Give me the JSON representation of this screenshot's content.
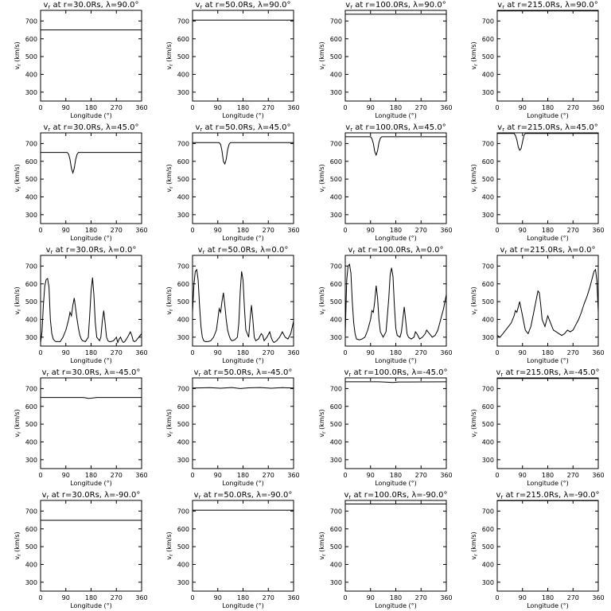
{
  "chart_data": [
    {
      "type": "line",
      "title": "v_r at r=30.0Rs, λ=90.0°",
      "r": "30.0",
      "lat": "90.0",
      "xlabel": "Longitude (°)",
      "ylabel": "v_r (km/s)",
      "xlim": [
        0,
        360
      ],
      "ylim": [
        250,
        760
      ],
      "xticks": [
        0,
        90,
        180,
        270,
        360
      ],
      "yticks": [
        300,
        400,
        500,
        600,
        700
      ],
      "x": [
        0,
        360
      ],
      "y": [
        650,
        650
      ]
    },
    {
      "type": "line",
      "title": "v_r at r=50.0Rs, λ=90.0°",
      "r": "50.0",
      "lat": "90.0",
      "xlabel": "Longitude (°)",
      "ylabel": "v_r (km/s)",
      "xlim": [
        0,
        360
      ],
      "ylim": [
        250,
        760
      ],
      "xticks": [
        0,
        90,
        180,
        270,
        360
      ],
      "yticks": [
        300,
        400,
        500,
        600,
        700
      ],
      "x": [
        0,
        360
      ],
      "y": [
        705,
        705
      ]
    },
    {
      "type": "line",
      "title": "v_r at r=100.0Rs, λ=90.0°",
      "r": "100.0",
      "lat": "90.0",
      "xlabel": "Longitude (°)",
      "ylabel": "v_r (km/s)",
      "xlim": [
        0,
        360
      ],
      "ylim": [
        250,
        760
      ],
      "xticks": [
        0,
        90,
        180,
        270,
        360
      ],
      "yticks": [
        300,
        400,
        500,
        600,
        700
      ],
      "x": [
        0,
        360
      ],
      "y": [
        738,
        738
      ]
    },
    {
      "type": "line",
      "title": "v_r at r=215.0Rs, λ=90.0°",
      "r": "215.0",
      "lat": "90.0",
      "xlabel": "Longitude (°)",
      "ylabel": "v_r (km/s)",
      "xlim": [
        0,
        360
      ],
      "ylim": [
        250,
        760
      ],
      "xticks": [
        0,
        90,
        180,
        270,
        360
      ],
      "yticks": [
        300,
        400,
        500,
        600,
        700
      ],
      "x": [
        0,
        360
      ],
      "y": [
        757,
        757
      ]
    },
    {
      "type": "line",
      "title": "v_r at r=30.0Rs, λ=45.0°",
      "r": "30.0",
      "lat": "45.0",
      "xlabel": "Longitude (°)",
      "ylabel": "v_r (km/s)",
      "xlim": [
        0,
        360
      ],
      "ylim": [
        250,
        760
      ],
      "xticks": [
        0,
        90,
        180,
        270,
        360
      ],
      "yticks": [
        300,
        400,
        500,
        600,
        700
      ],
      "x": [
        0,
        95,
        100,
        105,
        110,
        115,
        120,
        125,
        130,
        135,
        140,
        360
      ],
      "y": [
        650,
        650,
        640,
        610,
        560,
        535,
        560,
        610,
        640,
        650,
        650,
        650
      ]
    },
    {
      "type": "line",
      "title": "v_r at r=50.0Rs, λ=45.0°",
      "r": "50.0",
      "lat": "45.0",
      "xlabel": "Longitude (°)",
      "ylabel": "v_r (km/s)",
      "xlim": [
        0,
        360
      ],
      "ylim": [
        250,
        760
      ],
      "xticks": [
        0,
        90,
        180,
        270,
        360
      ],
      "yticks": [
        300,
        400,
        500,
        600,
        700
      ],
      "x": [
        0,
        95,
        100,
        105,
        110,
        115,
        120,
        125,
        130,
        135,
        360
      ],
      "y": [
        705,
        705,
        695,
        660,
        600,
        585,
        610,
        665,
        695,
        705,
        705
      ]
    },
    {
      "type": "line",
      "title": "v_r at r=100.0Rs, λ=45.0°",
      "r": "100.0",
      "lat": "45.0",
      "xlabel": "Longitude (°)",
      "ylabel": "v_r (km/s)",
      "xlim": [
        0,
        360
      ],
      "ylim": [
        250,
        760
      ],
      "xticks": [
        0,
        90,
        180,
        270,
        360
      ],
      "yticks": [
        300,
        400,
        500,
        600,
        700
      ],
      "x": [
        0,
        90,
        95,
        100,
        105,
        110,
        115,
        120,
        125,
        130,
        360
      ],
      "y": [
        738,
        738,
        728,
        700,
        655,
        635,
        660,
        705,
        730,
        738,
        738
      ]
    },
    {
      "type": "line",
      "title": "v_r at r=215.0Rs, λ=45.0°",
      "r": "215.0",
      "lat": "45.0",
      "xlabel": "Longitude (°)",
      "ylabel": "v_r (km/s)",
      "xlim": [
        0,
        360
      ],
      "ylim": [
        250,
        760
      ],
      "xticks": [
        0,
        90,
        180,
        270,
        360
      ],
      "yticks": [
        300,
        400,
        500,
        600,
        700
      ],
      "x": [
        0,
        60,
        65,
        70,
        75,
        80,
        85,
        90,
        95,
        100,
        360
      ],
      "y": [
        757,
        757,
        745,
        720,
        680,
        662,
        672,
        710,
        745,
        757,
        757
      ]
    },
    {
      "type": "line",
      "title": "v_r at r=30.0Rs, λ=0.0°",
      "r": "30.0",
      "lat": "0.0",
      "xlabel": "Longitude (°)",
      "ylabel": "v_r (km/s)",
      "xlim": [
        0,
        360
      ],
      "ylim": [
        250,
        760
      ],
      "xticks": [
        0,
        90,
        180,
        270,
        360
      ],
      "yticks": [
        300,
        400,
        500,
        600,
        700
      ],
      "x": [
        0,
        5,
        10,
        15,
        20,
        25,
        30,
        35,
        40,
        45,
        50,
        55,
        60,
        70,
        80,
        90,
        100,
        105,
        110,
        115,
        120,
        125,
        130,
        135,
        140,
        145,
        150,
        160,
        170,
        175,
        180,
        185,
        190,
        195,
        200,
        210,
        215,
        220,
        225,
        230,
        235,
        240,
        245,
        250,
        260,
        270,
        275,
        280,
        285,
        290,
        295,
        300,
        310,
        320,
        325,
        330,
        335,
        340,
        350,
        360
      ],
      "y": [
        270,
        330,
        480,
        590,
        625,
        630,
        580,
        400,
        320,
        290,
        280,
        275,
        275,
        275,
        300,
        340,
        400,
        440,
        420,
        480,
        520,
        460,
        400,
        350,
        310,
        290,
        280,
        275,
        300,
        420,
        560,
        635,
        540,
        380,
        300,
        280,
        300,
        390,
        450,
        380,
        300,
        280,
        275,
        275,
        280,
        300,
        270,
        290,
        300,
        280,
        270,
        275,
        300,
        330,
        310,
        280,
        275,
        280,
        300,
        320
      ]
    },
    {
      "type": "line",
      "title": "v_r at r=50.0Rs, λ=0.0°",
      "r": "50.0",
      "lat": "0.0",
      "xlabel": "Longitude (°)",
      "ylabel": "v_r (km/s)",
      "xlim": [
        0,
        360
      ],
      "ylim": [
        250,
        760
      ],
      "xticks": [
        0,
        90,
        180,
        270,
        360
      ],
      "yticks": [
        300,
        400,
        500,
        600,
        700
      ],
      "x": [
        0,
        5,
        10,
        15,
        20,
        25,
        30,
        35,
        40,
        45,
        55,
        65,
        75,
        85,
        90,
        95,
        100,
        105,
        110,
        115,
        120,
        125,
        130,
        135,
        140,
        150,
        160,
        165,
        170,
        175,
        180,
        185,
        190,
        200,
        205,
        210,
        215,
        220,
        225,
        235,
        245,
        250,
        255,
        265,
        275,
        280,
        285,
        290,
        300,
        310,
        320,
        330,
        340,
        350,
        360
      ],
      "y": [
        440,
        600,
        670,
        680,
        620,
        480,
        360,
        300,
        280,
        275,
        275,
        280,
        300,
        340,
        400,
        460,
        440,
        500,
        550,
        480,
        400,
        340,
        310,
        290,
        280,
        285,
        300,
        380,
        560,
        670,
        620,
        460,
        340,
        300,
        400,
        480,
        400,
        300,
        280,
        290,
        320,
        310,
        280,
        300,
        330,
        300,
        280,
        270,
        280,
        300,
        330,
        300,
        290,
        320,
        390
      ]
    },
    {
      "type": "line",
      "title": "v_r at r=100.0Rs, λ=0.0°",
      "r": "100.0",
      "lat": "0.0",
      "xlabel": "Longitude (°)",
      "ylabel": "v_r (km/s)",
      "xlim": [
        0,
        360
      ],
      "ylim": [
        250,
        760
      ],
      "xticks": [
        0,
        90,
        180,
        270,
        360
      ],
      "yticks": [
        300,
        400,
        500,
        600,
        700
      ],
      "x": [
        0,
        5,
        10,
        15,
        20,
        25,
        30,
        35,
        40,
        50,
        60,
        70,
        80,
        90,
        95,
        100,
        105,
        110,
        115,
        120,
        125,
        135,
        145,
        150,
        155,
        160,
        165,
        170,
        175,
        180,
        185,
        195,
        200,
        205,
        210,
        215,
        220,
        225,
        235,
        245,
        250,
        255,
        265,
        275,
        285,
        290,
        300,
        310,
        320,
        330,
        340,
        350,
        360
      ],
      "y": [
        320,
        620,
        700,
        710,
        660,
        500,
        380,
        320,
        290,
        285,
        290,
        300,
        340,
        400,
        450,
        440,
        500,
        590,
        520,
        400,
        330,
        300,
        330,
        420,
        520,
        650,
        690,
        640,
        480,
        350,
        310,
        300,
        330,
        400,
        470,
        400,
        320,
        300,
        290,
        300,
        330,
        320,
        290,
        300,
        320,
        340,
        320,
        300,
        310,
        340,
        400,
        460,
        540
      ]
    },
    {
      "type": "line",
      "title": "v_r at r=215.0Rs, λ=0.0°",
      "r": "215.0",
      "lat": "0.0",
      "xlabel": "Longitude (°)",
      "ylabel": "v_r (km/s)",
      "xlim": [
        0,
        360
      ],
      "ylim": [
        250,
        760
      ],
      "xticks": [
        0,
        90,
        180,
        270,
        360
      ],
      "yticks": [
        300,
        400,
        500,
        600,
        700
      ],
      "x": [
        0,
        10,
        20,
        30,
        40,
        50,
        60,
        65,
        70,
        75,
        80,
        85,
        90,
        95,
        100,
        110,
        120,
        130,
        140,
        145,
        150,
        155,
        160,
        170,
        175,
        180,
        190,
        200,
        210,
        220,
        230,
        240,
        250,
        260,
        270,
        280,
        290,
        300,
        310,
        320,
        330,
        340,
        345,
        350,
        355,
        360
      ],
      "y": [
        310,
        300,
        320,
        340,
        360,
        380,
        420,
        450,
        440,
        470,
        500,
        460,
        420,
        380,
        340,
        320,
        360,
        440,
        520,
        560,
        550,
        480,
        400,
        360,
        390,
        420,
        380,
        340,
        330,
        320,
        310,
        320,
        340,
        330,
        340,
        370,
        400,
        440,
        490,
        530,
        580,
        640,
        670,
        680,
        620,
        440
      ]
    },
    {
      "type": "line",
      "title": "v_r at r=30.0Rs, λ=-45.0°",
      "r": "30.0",
      "lat": "-45.0",
      "xlabel": "Longitude (°)",
      "ylabel": "v_r (km/s)",
      "xlim": [
        0,
        360
      ],
      "ylim": [
        250,
        760
      ],
      "xticks": [
        0,
        90,
        180,
        270,
        360
      ],
      "yticks": [
        300,
        400,
        500,
        600,
        700
      ],
      "x": [
        0,
        150,
        160,
        170,
        180,
        200,
        360
      ],
      "y": [
        650,
        650,
        648,
        645,
        646,
        650,
        650
      ]
    },
    {
      "type": "line",
      "title": "v_r at r=50.0Rs, λ=-45.0°",
      "r": "50.0",
      "lat": "-45.0",
      "xlabel": "Longitude (°)",
      "ylabel": "v_r (km/s)",
      "xlim": [
        0,
        360
      ],
      "ylim": [
        250,
        760
      ],
      "xticks": [
        0,
        90,
        180,
        270,
        360
      ],
      "yticks": [
        300,
        400,
        500,
        600,
        700
      ],
      "x": [
        0,
        60,
        100,
        140,
        170,
        200,
        240,
        280,
        320,
        360
      ],
      "y": [
        703,
        705,
        702,
        706,
        700,
        704,
        706,
        702,
        705,
        703
      ]
    },
    {
      "type": "line",
      "title": "v_r at r=100.0Rs, λ=-45.0°",
      "r": "100.0",
      "lat": "-45.0",
      "xlabel": "Longitude (°)",
      "ylabel": "v_r (km/s)",
      "xlim": [
        0,
        360
      ],
      "ylim": [
        250,
        760
      ],
      "xticks": [
        0,
        90,
        180,
        270,
        360
      ],
      "yticks": [
        300,
        400,
        500,
        600,
        700
      ],
      "x": [
        0,
        120,
        150,
        170,
        190,
        360
      ],
      "y": [
        738,
        738,
        736,
        734,
        737,
        738
      ]
    },
    {
      "type": "line",
      "title": "v_r at r=215.0Rs, λ=-45.0°",
      "r": "215.0",
      "lat": "-45.0",
      "xlabel": "Longitude (°)",
      "ylabel": "v_r (km/s)",
      "xlim": [
        0,
        360
      ],
      "ylim": [
        250,
        760
      ],
      "xticks": [
        0,
        90,
        180,
        270,
        360
      ],
      "yticks": [
        300,
        400,
        500,
        600,
        700
      ],
      "x": [
        0,
        360
      ],
      "y": [
        757,
        757
      ]
    },
    {
      "type": "line",
      "title": "v_r at r=30.0Rs, λ=-90.0°",
      "r": "30.0",
      "lat": "-90.0",
      "xlabel": "Longitude (°)",
      "ylabel": "v_r (km/s)",
      "xlim": [
        0,
        360
      ],
      "ylim": [
        250,
        760
      ],
      "xticks": [
        0,
        90,
        180,
        270,
        360
      ],
      "yticks": [
        300,
        400,
        500,
        600,
        700
      ],
      "x": [
        0,
        360
      ],
      "y": [
        648,
        648
      ]
    },
    {
      "type": "line",
      "title": "v_r at r=50.0Rs, λ=-90.0°",
      "r": "50.0",
      "lat": "-90.0",
      "xlabel": "Longitude (°)",
      "ylabel": "v_r (km/s)",
      "xlim": [
        0,
        360
      ],
      "ylim": [
        250,
        760
      ],
      "xticks": [
        0,
        90,
        180,
        270,
        360
      ],
      "yticks": [
        300,
        400,
        500,
        600,
        700
      ],
      "x": [
        0,
        360
      ],
      "y": [
        705,
        705
      ]
    },
    {
      "type": "line",
      "title": "v_r at r=100.0Rs, λ=-90.0°",
      "r": "100.0",
      "lat": "-90.0",
      "xlabel": "Longitude (°)",
      "ylabel": "v_r (km/s)",
      "xlim": [
        0,
        360
      ],
      "ylim": [
        250,
        760
      ],
      "xticks": [
        0,
        90,
        180,
        270,
        360
      ],
      "yticks": [
        300,
        400,
        500,
        600,
        700
      ],
      "x": [
        0,
        360
      ],
      "y": [
        740,
        740
      ]
    },
    {
      "type": "line",
      "title": "v_r at r=215.0Rs, λ=-90.0°",
      "r": "215.0",
      "lat": "-90.0",
      "xlabel": "Longitude (°)",
      "ylabel": "v_r (km/s)",
      "xlim": [
        0,
        360
      ],
      "ylim": [
        250,
        760
      ],
      "xticks": [
        0,
        90,
        180,
        270,
        360
      ],
      "yticks": [
        300,
        400,
        500,
        600,
        700
      ],
      "x": [
        0,
        360
      ],
      "y": [
        758,
        758
      ]
    }
  ]
}
